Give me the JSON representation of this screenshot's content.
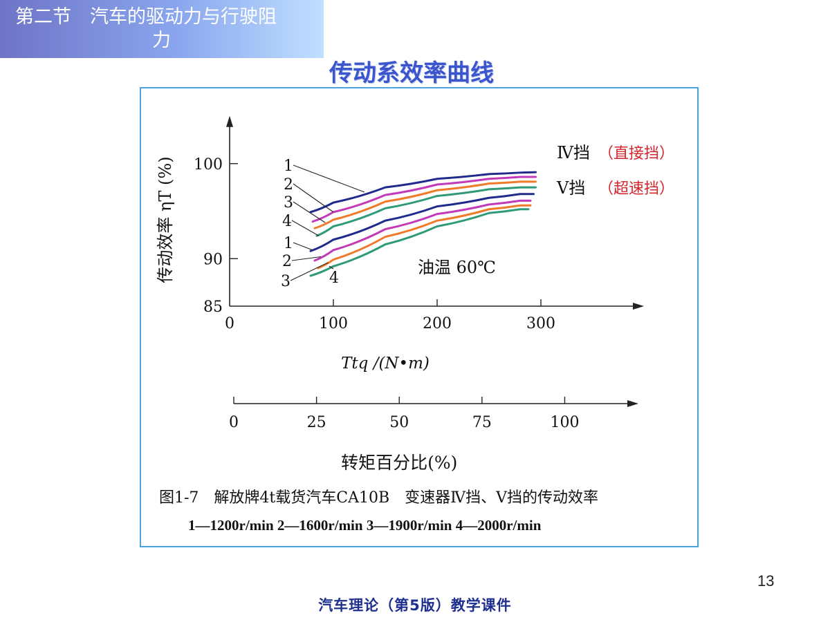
{
  "header": {
    "section_line1": "第二节　汽车的驱动力与行驶阻",
    "section_line2": "力"
  },
  "slide_title": "传动系效率曲线",
  "chart_data": {
    "type": "line",
    "title": "",
    "ylabel": "传动效率 ηT (%)",
    "xlabel": "Ttq /(N•m)",
    "xlabel2": "转矩百分比(%)",
    "xlim": [
      0,
      390
    ],
    "ylim": [
      85,
      104
    ],
    "yticks": [
      85,
      90,
      100
    ],
    "ytick_labels": [
      "85",
      "90",
      "100"
    ],
    "xticks": [
      0,
      100,
      200,
      300
    ],
    "xtick_labels": [
      "0",
      "100",
      "200",
      "300"
    ],
    "xticks2": [
      0,
      25,
      50,
      75,
      100
    ],
    "xtick2_labels": [
      "0",
      "25",
      "50",
      "75",
      "100"
    ],
    "x2_per_unit": 0.3135,
    "colors": {
      "1": "#1f2a8c",
      "2": "#c23ab8",
      "3": "#f07a28",
      "4": "#2e9a78"
    },
    "groups": [
      {
        "gear_label": "Ⅳ挡",
        "gear_note": "（直接挡）",
        "series": [
          {
            "name": "1",
            "x": [
              78,
              100,
              150,
              200,
              250,
              280,
              295
            ],
            "y": [
              94.9,
              95.9,
              97.5,
              98.4,
              98.9,
              99.05,
              99.1
            ]
          },
          {
            "name": "2",
            "x": [
              80,
              100,
              150,
              200,
              250,
              280,
              295
            ],
            "y": [
              93.9,
              94.9,
              96.7,
              97.8,
              98.4,
              98.6,
              98.6
            ]
          },
          {
            "name": "3",
            "x": [
              82,
              100,
              150,
              200,
              250,
              280,
              295
            ],
            "y": [
              93.2,
              94.1,
              96.0,
              97.2,
              97.9,
              98.1,
              98.1
            ]
          },
          {
            "name": "4",
            "x": [
              84,
              100,
              150,
              200,
              250,
              280,
              295
            ],
            "y": [
              92.4,
              93.4,
              95.3,
              96.6,
              97.3,
              97.5,
              97.5
            ]
          }
        ]
      },
      {
        "gear_label": "Ⅴ挡",
        "gear_note": "（超速挡）",
        "series": [
          {
            "name": "1",
            "x": [
              78,
              100,
              150,
              200,
              250,
              280,
              293
            ],
            "y": [
              90.8,
              92.0,
              94.0,
              95.5,
              96.4,
              96.8,
              96.8
            ]
          },
          {
            "name": "2",
            "x": [
              82,
              100,
              150,
              200,
              250,
              280,
              290
            ],
            "y": [
              89.8,
              90.9,
              93.1,
              94.7,
              95.7,
              96.1,
              96.1
            ]
          },
          {
            "name": "3",
            "x": [
              85,
              100,
              150,
              200,
              250,
              280,
              290
            ],
            "y": [
              89.0,
              89.9,
              92.3,
              94.0,
              95.2,
              95.6,
              95.6
            ]
          },
          {
            "name": "4",
            "x": [
              78,
              100,
              150,
              200,
              250,
              280,
              288
            ],
            "y": [
              88.2,
              89.2,
              91.5,
              93.4,
              94.8,
              95.2,
              95.2
            ]
          }
        ]
      }
    ],
    "annotation": "油温 60℃",
    "curve_labels_upper": [
      "1",
      "2",
      "3",
      "4"
    ],
    "curve_labels_lower": [
      "1",
      "2",
      "3",
      "4"
    ]
  },
  "caption": {
    "line1": "图1-7　解放牌4t载货汽车CA10B　变速器Ⅳ挡、Ⅴ挡的传动效率",
    "line2": "1—1200r/min  2—1600r/min  3—1900r/min  4—2000r/min"
  },
  "page_number": "13",
  "footer": "汽车理论（第5版）教学课件"
}
